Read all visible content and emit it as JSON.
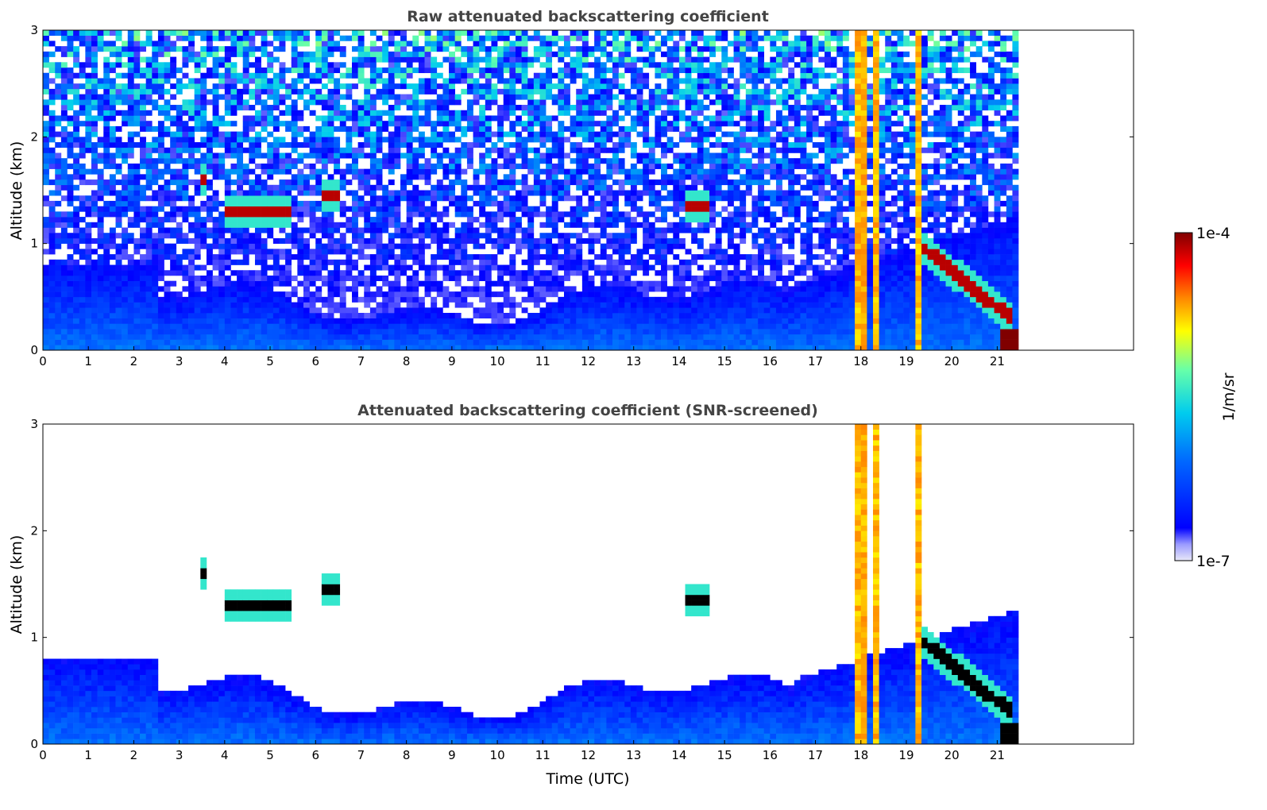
{
  "chart_data": [
    {
      "type": "heatmap",
      "title": "Raw attenuated backscattering coefficient",
      "xlabel": "",
      "ylabel": "Altitude (km)",
      "xlim": [
        0,
        24
      ],
      "ylim": [
        0,
        3
      ],
      "x_ticks": [
        "0",
        "1",
        "2",
        "3",
        "4",
        "5",
        "6",
        "7",
        "8",
        "9",
        "10",
        "11",
        "12",
        "13",
        "14",
        "15",
        "16",
        "17",
        "18",
        "19",
        "20",
        "21"
      ],
      "y_ticks": [
        "0",
        "1",
        "2",
        "3"
      ],
      "data_end_time": 21.45,
      "features": {
        "boundary_layer_top_km": 0.5,
        "cloud_patches": [
          {
            "t_start": 3.5,
            "t_end": 3.6,
            "alt_km": 1.6
          },
          {
            "t_start": 4.0,
            "t_end": 5.5,
            "alt_km": 1.3
          },
          {
            "t_start": 6.1,
            "t_end": 6.6,
            "alt_km": 1.45
          },
          {
            "t_start": 14.1,
            "t_end": 14.6,
            "alt_km": 1.35
          },
          {
            "t_start": 19.4,
            "t_end": 21.3,
            "alt_km": 0.7
          }
        ],
        "precipitation_columns": [
          18.0,
          18.1,
          18.3,
          19.3
        ]
      }
    },
    {
      "type": "heatmap",
      "title": "Attenuated backscattering coefficient (SNR-screened)",
      "xlabel": "Time (UTC)",
      "ylabel": "Altitude (km)",
      "xlim": [
        0,
        24
      ],
      "ylim": [
        0,
        3
      ],
      "x_ticks": [
        "0",
        "1",
        "2",
        "3",
        "4",
        "5",
        "6",
        "7",
        "8",
        "9",
        "10",
        "11",
        "12",
        "13",
        "14",
        "15",
        "16",
        "17",
        "18",
        "19",
        "20",
        "21"
      ],
      "y_ticks": [
        "0",
        "1",
        "2",
        "3"
      ],
      "data_end_time": 21.45
    }
  ],
  "colorbar": {
    "label": "1/m/sr",
    "max_label": "1e-4",
    "min_label": "1e-7",
    "scale": "log",
    "colormap": [
      "#e8e8f8",
      "#9a9aff",
      "#0000ff",
      "#0066ff",
      "#00ccee",
      "#66ffaa",
      "#ffff00",
      "#ff8800",
      "#ff0000",
      "#800000"
    ]
  }
}
